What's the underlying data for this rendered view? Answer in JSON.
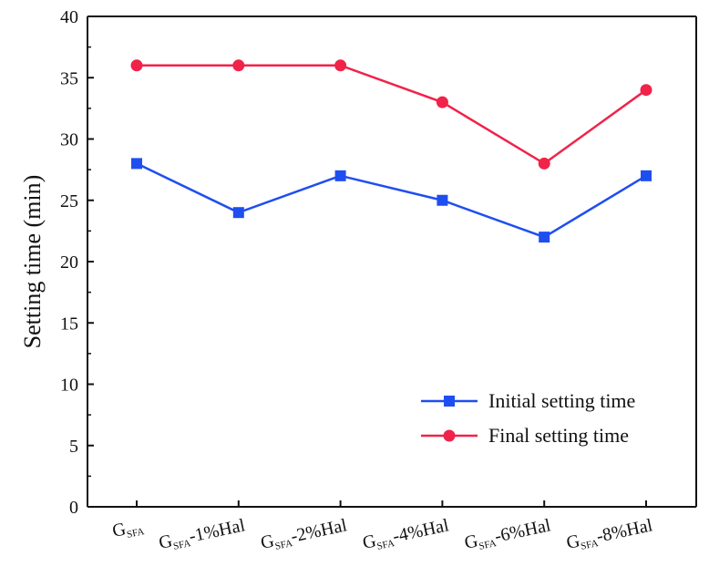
{
  "chart_data": {
    "type": "line",
    "title": "",
    "xlabel": "",
    "ylabel": "Setting time  (min)",
    "ylim": [
      0,
      40
    ],
    "yticks": [
      0,
      5,
      10,
      15,
      20,
      25,
      30,
      35,
      40
    ],
    "categories": [
      {
        "base": "G",
        "sub": "SFA",
        "suffix": ""
      },
      {
        "base": "G",
        "sub": "SFA",
        "suffix": "-1%Hal"
      },
      {
        "base": "G",
        "sub": "SFA",
        "suffix": "-2%Hal"
      },
      {
        "base": "G",
        "sub": "SFA",
        "suffix": "-4%Hal"
      },
      {
        "base": "G",
        "sub": "SFA",
        "suffix": "-6%Hal"
      },
      {
        "base": "G",
        "sub": "SFA",
        "suffix": "-8%Hal"
      }
    ],
    "series": [
      {
        "name": "Initial setting time",
        "color": "#1f4ef0",
        "marker": "square",
        "values": [
          28,
          24,
          27,
          25,
          22,
          27
        ]
      },
      {
        "name": "Final setting time",
        "color": "#f0234a",
        "marker": "circle",
        "values": [
          36,
          36,
          36,
          33,
          28,
          34
        ]
      }
    ],
    "legend_position": "bottom-right",
    "grid": false
  }
}
